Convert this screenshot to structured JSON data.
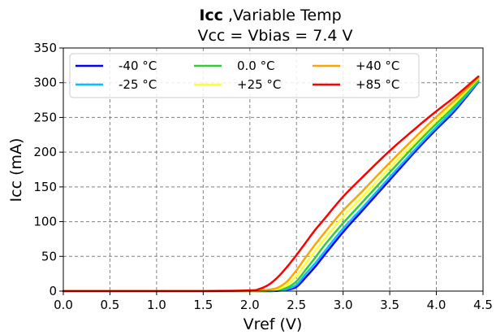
{
  "chart_data": {
    "type": "line",
    "title_bold": "Icc",
    "title_rest": " ,Variable Temp",
    "subtitle": "Vcc = Vbias = 7.4 V",
    "xlabel": "Vref (V)",
    "ylabel": "Icc (mA)",
    "xlim": [
      0.0,
      4.5
    ],
    "ylim": [
      0,
      350
    ],
    "xticks": [
      "0.0",
      "0.5",
      "1.0",
      "1.5",
      "2.0",
      "2.5",
      "3.0",
      "3.5",
      "4.0",
      "4.5"
    ],
    "yticks": [
      "0",
      "50",
      "100",
      "150",
      "200",
      "250",
      "300",
      "350"
    ],
    "grid": true,
    "legend_position": "top-left",
    "legend_columns": 3,
    "series": [
      {
        "name": "-40 °C",
        "color": "#0000ff",
        "x": [
          0.0,
          0.5,
          1.0,
          1.5,
          2.0,
          2.2,
          2.3,
          2.4,
          2.5,
          2.6,
          2.7,
          2.8,
          3.0,
          3.2,
          3.5,
          3.8,
          4.0,
          4.2,
          4.45
        ],
        "y": [
          0,
          0,
          0,
          0,
          0,
          0,
          0.5,
          2,
          6,
          20,
          35,
          52,
          85,
          115,
          160,
          205,
          233,
          260,
          301
        ]
      },
      {
        "name": "-25 °C",
        "color": "#00bfff",
        "x": [
          0.0,
          0.5,
          1.0,
          1.5,
          2.0,
          2.2,
          2.3,
          2.4,
          2.5,
          2.6,
          2.7,
          2.8,
          3.0,
          3.2,
          3.5,
          3.8,
          4.0,
          4.2,
          4.45
        ],
        "y": [
          0,
          0,
          0,
          0,
          0,
          0,
          1,
          3,
          9,
          25,
          40,
          57,
          90,
          119,
          164,
          208,
          236,
          263,
          302
        ]
      },
      {
        "name": "0.0 °C",
        "color": "#32cd32",
        "x": [
          0.0,
          0.5,
          1.0,
          1.5,
          2.0,
          2.2,
          2.3,
          2.4,
          2.5,
          2.6,
          2.7,
          2.8,
          3.0,
          3.2,
          3.5,
          3.8,
          4.0,
          4.2,
          4.45
        ],
        "y": [
          0,
          0,
          0,
          0,
          0,
          0.5,
          2,
          5,
          14,
          31,
          48,
          66,
          98,
          127,
          171,
          214,
          241,
          267,
          304
        ]
      },
      {
        "name": "+25 °C",
        "color": "#ffff33",
        "x": [
          0.0,
          0.5,
          1.0,
          1.5,
          2.0,
          2.2,
          2.3,
          2.4,
          2.5,
          2.6,
          2.7,
          2.8,
          3.0,
          3.2,
          3.5,
          3.8,
          4.0,
          4.2,
          4.45
        ],
        "y": [
          0,
          0,
          0,
          0,
          0,
          1,
          3,
          9,
          22,
          40,
          58,
          75,
          107,
          135,
          178,
          219,
          246,
          271,
          306
        ]
      },
      {
        "name": "+40 °C",
        "color": "#ffa500",
        "x": [
          0.0,
          0.5,
          1.0,
          1.5,
          2.0,
          2.2,
          2.3,
          2.4,
          2.5,
          2.6,
          2.7,
          2.8,
          3.0,
          3.2,
          3.5,
          3.8,
          4.0,
          4.2,
          4.45
        ],
        "y": [
          0,
          0,
          0,
          0,
          0.5,
          2,
          5,
          14,
          30,
          49,
          67,
          84,
          116,
          143,
          185,
          225,
          251,
          275,
          307
        ]
      },
      {
        "name": "+85 °C",
        "color": "#ff0000",
        "x": [
          0.0,
          0.5,
          1.0,
          1.5,
          2.0,
          2.1,
          2.2,
          2.3,
          2.4,
          2.5,
          2.6,
          2.7,
          2.8,
          3.0,
          3.2,
          3.5,
          3.8,
          4.0,
          4.2,
          4.45
        ],
        "y": [
          0,
          0,
          0,
          0,
          1,
          3,
          9,
          20,
          35,
          52,
          70,
          88,
          104,
          136,
          163,
          202,
          237,
          259,
          280,
          309
        ]
      }
    ]
  }
}
